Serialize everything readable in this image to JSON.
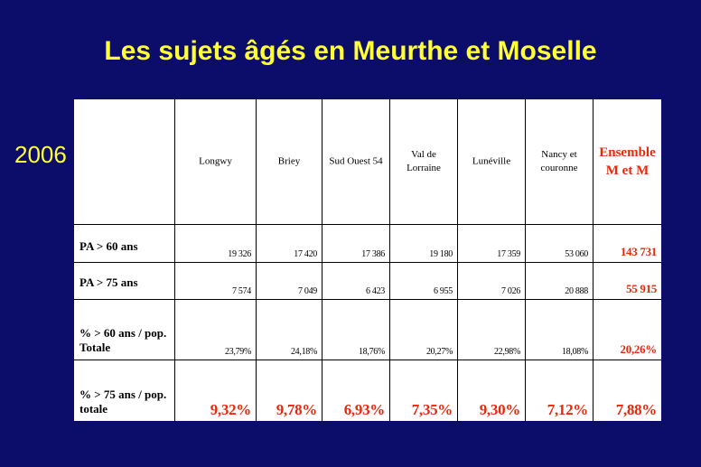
{
  "title": "Les sujets âgés en Meurthe et Moselle",
  "year": "2006",
  "table": {
    "columns": [
      "Longwy",
      "Briey",
      "Sud Ouest 54",
      "Val de Lorraine",
      "Lunéville",
      "Nancy et couronne",
      "Ensemble M et M"
    ],
    "rows": [
      {
        "label": "PA > 60 ans",
        "values": [
          "19 326",
          "17 420",
          "17 386",
          "19 180",
          "17 359",
          "53 060",
          "143 731"
        ]
      },
      {
        "label": "PA  > 75 ans",
        "values": [
          "7 574",
          "7 049",
          "6 423",
          "6 955",
          "7 026",
          "20 888",
          "55 915"
        ]
      },
      {
        "label": "% > 60 ans / pop. Totale",
        "values": [
          "23,79%",
          "24,18%",
          "18,76%",
          "20,27%",
          "22,98%",
          "18,08%",
          "20,26%"
        ]
      },
      {
        "label": "% > 75 ans / pop.  totale",
        "values": [
          "9,32%",
          "9,78%",
          "6,93%",
          "7,35%",
          "9,30%",
          "7,12%",
          "7,88%"
        ]
      }
    ]
  },
  "colors": {
    "background": "#0c0c6a",
    "title": "#ffff33",
    "highlight": "#e8280c"
  }
}
